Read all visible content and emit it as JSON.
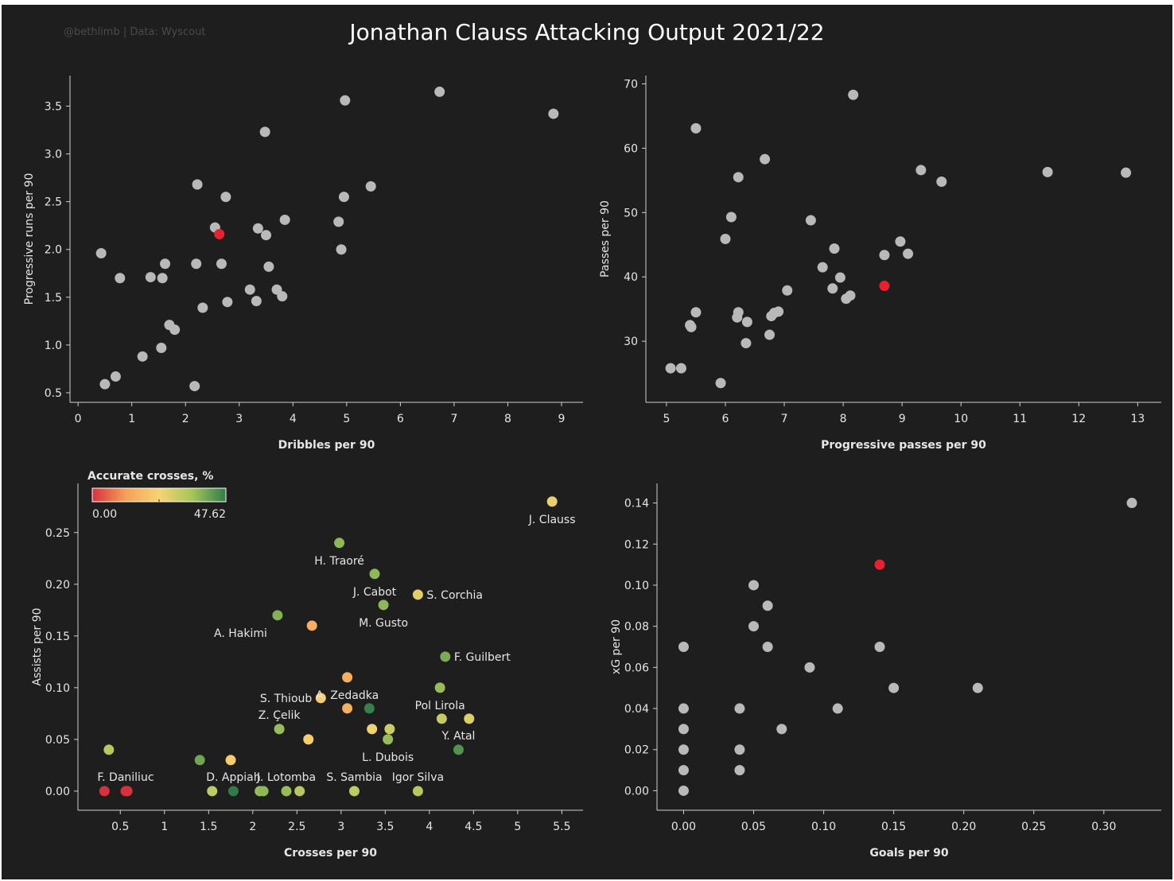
{
  "header": {
    "title": "Jonathan Clauss Attacking Output 2021/22",
    "credit": "@bethlimb | Data: Wyscout"
  },
  "colors": {
    "background": "#1e1e1e",
    "point": "#b9b9b9",
    "highlight": "#e8212f",
    "axis": "#d0d0d0",
    "text": "#e6e6e6"
  },
  "chart_data": [
    {
      "id": "dribbles-vs-progressive-runs",
      "type": "scatter",
      "xlabel": "Dribbles per 90",
      "ylabel": "Progressive runs per 90",
      "xlim": [
        -0.15,
        9.4
      ],
      "ylim": [
        0.4,
        3.82
      ],
      "xticks": [
        0,
        1,
        2,
        3,
        4,
        5,
        6,
        7,
        8,
        9
      ],
      "yticks": [
        0.5,
        1.0,
        1.5,
        2.0,
        2.5,
        3.0,
        3.5
      ],
      "ytick_format": 1,
      "grid": false,
      "highlight": {
        "x": 2.63,
        "y": 2.16
      },
      "points": [
        [
          0.43,
          1.96
        ],
        [
          0.5,
          0.59
        ],
        [
          0.7,
          0.67
        ],
        [
          0.78,
          1.7
        ],
        [
          1.2,
          0.88
        ],
        [
          1.35,
          1.71
        ],
        [
          1.55,
          0.97
        ],
        [
          1.57,
          1.7
        ],
        [
          1.62,
          1.85
        ],
        [
          1.7,
          1.21
        ],
        [
          1.8,
          1.16
        ],
        [
          2.17,
          0.57
        ],
        [
          2.2,
          1.85
        ],
        [
          2.22,
          2.68
        ],
        [
          2.32,
          1.39
        ],
        [
          2.55,
          2.23
        ],
        [
          2.67,
          1.85
        ],
        [
          2.75,
          2.55
        ],
        [
          2.78,
          1.45
        ],
        [
          3.2,
          1.58
        ],
        [
          3.32,
          1.46
        ],
        [
          3.35,
          2.22
        ],
        [
          3.48,
          3.23
        ],
        [
          3.5,
          2.15
        ],
        [
          3.55,
          1.82
        ],
        [
          3.7,
          1.58
        ],
        [
          3.8,
          1.51
        ],
        [
          3.85,
          2.31
        ],
        [
          4.85,
          2.29
        ],
        [
          4.9,
          2.0
        ],
        [
          4.95,
          2.55
        ],
        [
          4.97,
          3.56
        ],
        [
          5.45,
          2.66
        ],
        [
          6.73,
          3.65
        ],
        [
          8.85,
          3.42
        ]
      ]
    },
    {
      "id": "progressive-passes-vs-passes",
      "type": "scatter",
      "xlabel": "Progressive passes per 90",
      "ylabel": "Passes per 90",
      "xlim": [
        4.65,
        13.4
      ],
      "ylim": [
        20.5,
        71.3
      ],
      "xticks": [
        5,
        6,
        7,
        8,
        9,
        10,
        11,
        12,
        13
      ],
      "yticks": [
        30,
        40,
        50,
        60,
        70
      ],
      "ytick_format": 0,
      "grid": false,
      "highlight": {
        "x": 8.7,
        "y": 38.6
      },
      "points": [
        [
          5.07,
          25.8
        ],
        [
          5.25,
          25.8
        ],
        [
          5.4,
          32.5
        ],
        [
          5.42,
          32.2
        ],
        [
          5.5,
          34.5
        ],
        [
          5.5,
          63.1
        ],
        [
          5.92,
          23.5
        ],
        [
          6.0,
          45.9
        ],
        [
          6.1,
          49.3
        ],
        [
          6.2,
          33.7
        ],
        [
          6.22,
          34.5
        ],
        [
          6.22,
          55.5
        ],
        [
          6.35,
          29.7
        ],
        [
          6.37,
          33.0
        ],
        [
          6.67,
          58.3
        ],
        [
          6.75,
          31.0
        ],
        [
          6.78,
          33.9
        ],
        [
          6.83,
          34.4
        ],
        [
          6.9,
          34.6
        ],
        [
          7.05,
          37.9
        ],
        [
          7.45,
          48.8
        ],
        [
          7.65,
          41.5
        ],
        [
          7.82,
          38.2
        ],
        [
          7.85,
          44.4
        ],
        [
          7.95,
          39.9
        ],
        [
          8.05,
          36.6
        ],
        [
          8.12,
          37.1
        ],
        [
          8.17,
          68.3
        ],
        [
          8.7,
          43.4
        ],
        [
          8.97,
          45.5
        ],
        [
          9.1,
          43.6
        ],
        [
          9.32,
          56.6
        ],
        [
          9.67,
          54.8
        ],
        [
          11.47,
          56.3
        ],
        [
          12.8,
          56.2
        ]
      ]
    },
    {
      "id": "crosses-vs-assists",
      "type": "scatter",
      "xlabel": "Crosses per 90",
      "ylabel": "Assists per 90",
      "xlim": [
        0.02,
        5.74
      ],
      "ylim": [
        -0.0185,
        0.2975
      ],
      "xticks": [
        0.5,
        1.0,
        1.5,
        2.0,
        2.5,
        3.0,
        3.5,
        4.0,
        4.5,
        5.0,
        5.5
      ],
      "yticks": [
        0.0,
        0.05,
        0.1,
        0.15,
        0.2,
        0.25
      ],
      "ytick_format": 2,
      "grid": false,
      "legend": {
        "title": "Accurate crosses, %",
        "min_label": "0.00",
        "max_label": "47.62",
        "min": 0,
        "max": 47.62,
        "placement": "top-left",
        "gradient": [
          "#d7313b",
          "#f5a05a",
          "#f7d470",
          "#a5c55a",
          "#2f7c4a"
        ]
      },
      "points": [
        {
          "x": 0.32,
          "y": 0.0,
          "c": 0.0
        },
        {
          "x": 0.37,
          "y": 0.04,
          "c": 33.0
        },
        {
          "x": 0.56,
          "y": 0.0,
          "c": 0.0,
          "label": "F. Daniliuc"
        },
        {
          "x": 0.58,
          "y": 0.0,
          "c": 0.0
        },
        {
          "x": 1.4,
          "y": 0.03,
          "c": 41.0
        },
        {
          "x": 1.54,
          "y": 0.0,
          "c": 32.0
        },
        {
          "x": 1.75,
          "y": 0.03,
          "c": 22.0
        },
        {
          "x": 1.78,
          "y": 0.0,
          "c": 47.62,
          "label": "D. Appiah"
        },
        {
          "x": 2.08,
          "y": 0.0,
          "c": 37.0
        },
        {
          "x": 2.12,
          "y": 0.0,
          "c": 38.0
        },
        {
          "x": 2.3,
          "y": 0.06,
          "c": 37.0,
          "label": "Z. Çelik"
        },
        {
          "x": 2.28,
          "y": 0.17,
          "c": 39.0,
          "label": "A. Hakimi",
          "label_pos": "bl"
        },
        {
          "x": 2.38,
          "y": 0.0,
          "c": 37.0,
          "label": "J. Lotomba"
        },
        {
          "x": 2.53,
          "y": 0.0,
          "c": 33.0
        },
        {
          "x": 2.63,
          "y": 0.05,
          "c": 22.0
        },
        {
          "x": 2.67,
          "y": 0.16,
          "c": 15.0
        },
        {
          "x": 2.77,
          "y": 0.09,
          "c": 22.0,
          "label": "S. Thioub",
          "label_pos": "l"
        },
        {
          "x": 2.98,
          "y": 0.24,
          "c": 38.0,
          "label": "H. Traoré",
          "label_pos": "b"
        },
        {
          "x": 3.07,
          "y": 0.11,
          "c": 15.0,
          "label": "A. Zedadka",
          "label_pos": "b"
        },
        {
          "x": 3.07,
          "y": 0.08,
          "c": 15.0
        },
        {
          "x": 3.15,
          "y": 0.0,
          "c": 32.0,
          "label": "S. Sambia"
        },
        {
          "x": 3.32,
          "y": 0.08,
          "c": 47.0
        },
        {
          "x": 3.35,
          "y": 0.06,
          "c": 25.0
        },
        {
          "x": 3.38,
          "y": 0.21,
          "c": 38.0,
          "label": "J. Cabot",
          "label_pos": "b"
        },
        {
          "x": 3.48,
          "y": 0.18,
          "c": 38.0,
          "label": "M. Gusto",
          "label_pos": "b"
        },
        {
          "x": 3.53,
          "y": 0.05,
          "c": 37.0,
          "label": "L. Dubois",
          "label_pos": "b"
        },
        {
          "x": 3.55,
          "y": 0.06,
          "c": 30.0
        },
        {
          "x": 3.87,
          "y": 0.19,
          "c": 27.0,
          "label": "S. Corchia",
          "label_pos": "r"
        },
        {
          "x": 3.87,
          "y": 0.0,
          "c": 33.0,
          "label": "Igor Silva"
        },
        {
          "x": 4.12,
          "y": 0.1,
          "c": 37.0,
          "label": "Pol Lirola",
          "label_pos": "b"
        },
        {
          "x": 4.14,
          "y": 0.07,
          "c": 31.0
        },
        {
          "x": 4.18,
          "y": 0.13,
          "c": 40.0,
          "label": "F. Guilbert",
          "label_pos": "r"
        },
        {
          "x": 4.33,
          "y": 0.04,
          "c": 44.0,
          "label": "Y. Atal"
        },
        {
          "x": 4.45,
          "y": 0.07,
          "c": 28.0
        },
        {
          "x": 5.39,
          "y": 0.28,
          "c": 26.0,
          "label": "J. Clauss",
          "label_pos": "b"
        }
      ]
    },
    {
      "id": "goals-vs-xg",
      "type": "scatter",
      "xlabel": "Goals per 90",
      "ylabel": "xG per 90",
      "xlim": [
        -0.019,
        0.341
      ],
      "ylim": [
        -0.0095,
        0.1495
      ],
      "xticks": [
        0.0,
        0.05,
        0.1,
        0.15,
        0.2,
        0.25,
        0.3
      ],
      "yticks": [
        0.0,
        0.02,
        0.04,
        0.06,
        0.08,
        0.1,
        0.12,
        0.14
      ],
      "xtick_format": 2,
      "ytick_format": 2,
      "grid": false,
      "highlight": {
        "x": 0.14,
        "y": 0.11
      },
      "points": [
        [
          0.0,
          0.0
        ],
        [
          0.0,
          0.01
        ],
        [
          0.0,
          0.02
        ],
        [
          0.0,
          0.03
        ],
        [
          0.0,
          0.04
        ],
        [
          0.0,
          0.07
        ],
        [
          0.04,
          0.01
        ],
        [
          0.04,
          0.02
        ],
        [
          0.04,
          0.04
        ],
        [
          0.05,
          0.08
        ],
        [
          0.05,
          0.1
        ],
        [
          0.06,
          0.07
        ],
        [
          0.06,
          0.09
        ],
        [
          0.07,
          0.03
        ],
        [
          0.09,
          0.06
        ],
        [
          0.11,
          0.04
        ],
        [
          0.14,
          0.07
        ],
        [
          0.15,
          0.05
        ],
        [
          0.21,
          0.05
        ],
        [
          0.32,
          0.14
        ]
      ]
    }
  ]
}
